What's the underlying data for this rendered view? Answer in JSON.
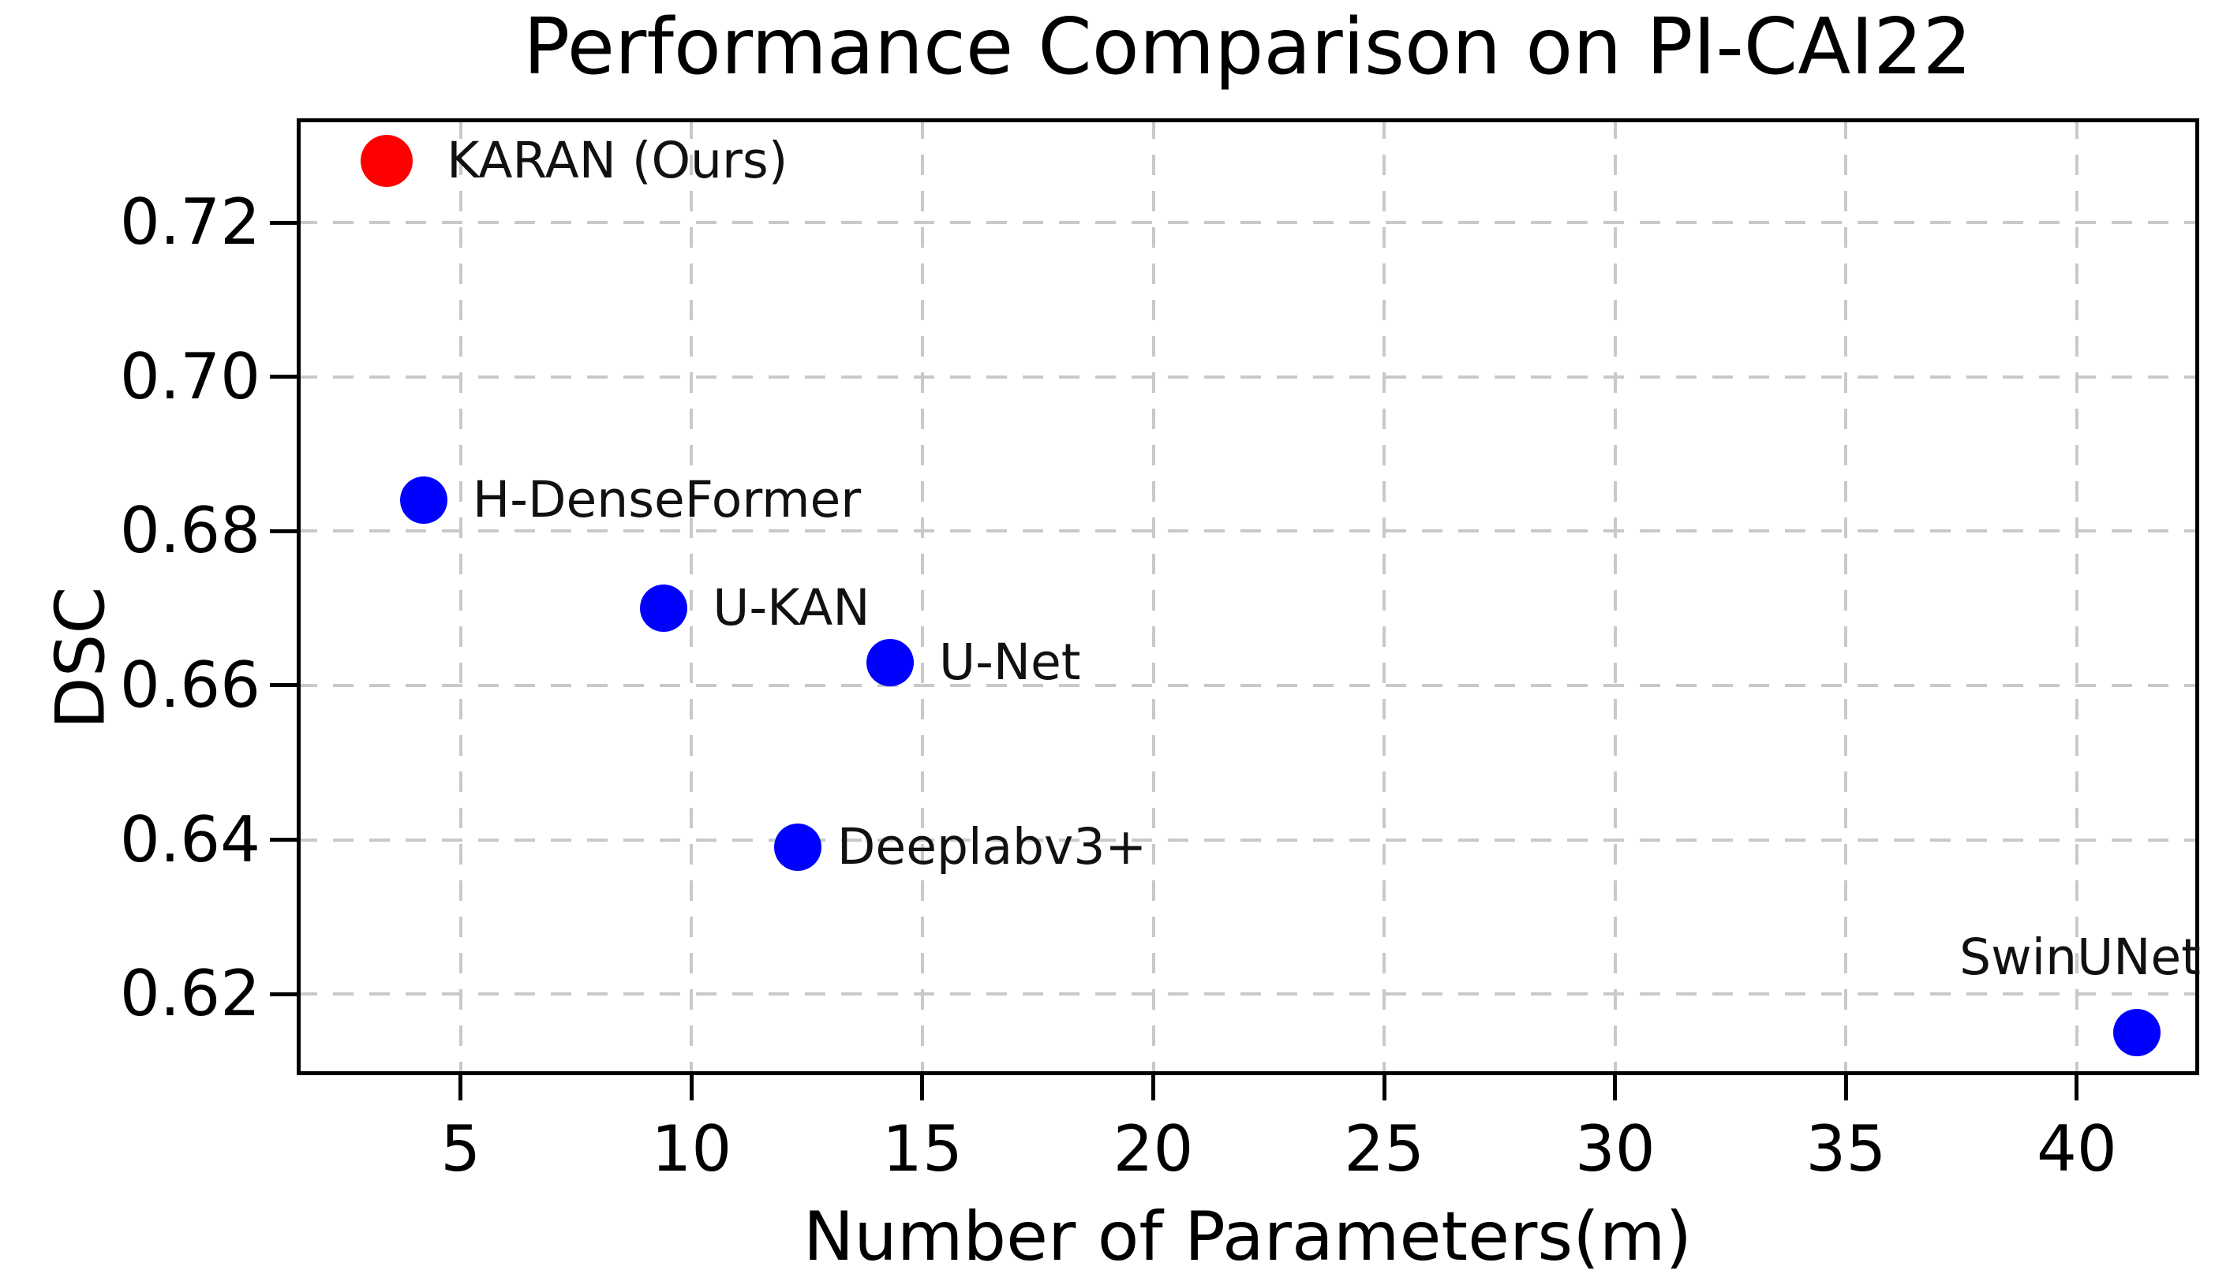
{
  "title": "Performance Comparison on PI-CAI22",
  "chart_data": {
    "type": "scatter",
    "title": "Performance Comparison on PI-CAI22",
    "xlabel": "Number of Parameters(m)",
    "ylabel": "DSC",
    "xlim": [
      1.45,
      42.65
    ],
    "ylim": [
      0.6095,
      0.7335
    ],
    "grid": "dashed",
    "legend_position": "upper-left-inside",
    "x_ticks": [
      {
        "v": 5,
        "label": "5"
      },
      {
        "v": 10,
        "label": "10"
      },
      {
        "v": 15,
        "label": "15"
      },
      {
        "v": 20,
        "label": "20"
      },
      {
        "v": 25,
        "label": "25"
      },
      {
        "v": 30,
        "label": "30"
      },
      {
        "v": 35,
        "label": "35"
      },
      {
        "v": 40,
        "label": "40"
      }
    ],
    "y_ticks": [
      {
        "v": 0.72,
        "label": "0.72"
      },
      {
        "v": 0.7,
        "label": "0.70"
      },
      {
        "v": 0.68,
        "label": "0.68"
      },
      {
        "v": 0.66,
        "label": "0.66"
      },
      {
        "v": 0.64,
        "label": "0.64"
      },
      {
        "v": 0.62,
        "label": "0.62"
      }
    ],
    "points": [
      {
        "label": "KARAN (Ours)",
        "x": 3.4,
        "y": 0.728,
        "color": "#ff0000",
        "marker_px": 66,
        "label_position": "right",
        "label_dx": 76,
        "highlight": true
      },
      {
        "label": "H-DenseFormer",
        "x": 4.2,
        "y": 0.684,
        "color": "#0000ff",
        "marker_px": 60,
        "label_position": "right",
        "label_dx": 62
      },
      {
        "label": "U-KAN",
        "x": 9.4,
        "y": 0.67,
        "color": "#0000ff",
        "marker_px": 60,
        "label_position": "right",
        "label_dx": 62
      },
      {
        "label": "U-Net",
        "x": 14.3,
        "y": 0.663,
        "color": "#0000ff",
        "marker_px": 60,
        "label_position": "right",
        "label_dx": 62
      },
      {
        "label": "Deeplabv3+",
        "x": 12.3,
        "y": 0.639,
        "color": "#0000ff",
        "marker_px": 60,
        "label_position": "right",
        "label_dx": 50
      },
      {
        "label": "SwinUNet",
        "x": 41.3,
        "y": 0.615,
        "color": "#0000ff",
        "marker_px": 60,
        "label_position": "above",
        "label_dx": -72,
        "label_dy": -95
      }
    ],
    "colors": {
      "highlight": "#ff0000",
      "default_point": "#0000ff",
      "grid": "#c9c9c9",
      "axis": "#000000",
      "text": "#000000"
    }
  }
}
